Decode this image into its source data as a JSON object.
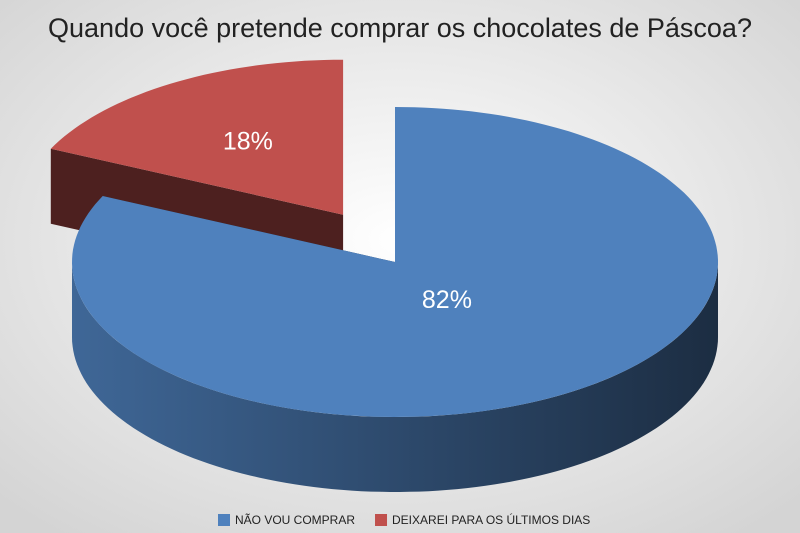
{
  "chart_data": {
    "type": "pie",
    "title": "Quando você pretende comprar os chocolates de Páscoa?",
    "categories": [
      "NÃO VOU COMPRAR",
      "DEIXAREI PARA OS ÚLTIMOS DIAS"
    ],
    "values": [
      82,
      18
    ],
    "value_labels": [
      "82%",
      "18%"
    ],
    "colors": [
      "#4f81bd",
      "#c0504d"
    ],
    "legend": "bottom"
  }
}
